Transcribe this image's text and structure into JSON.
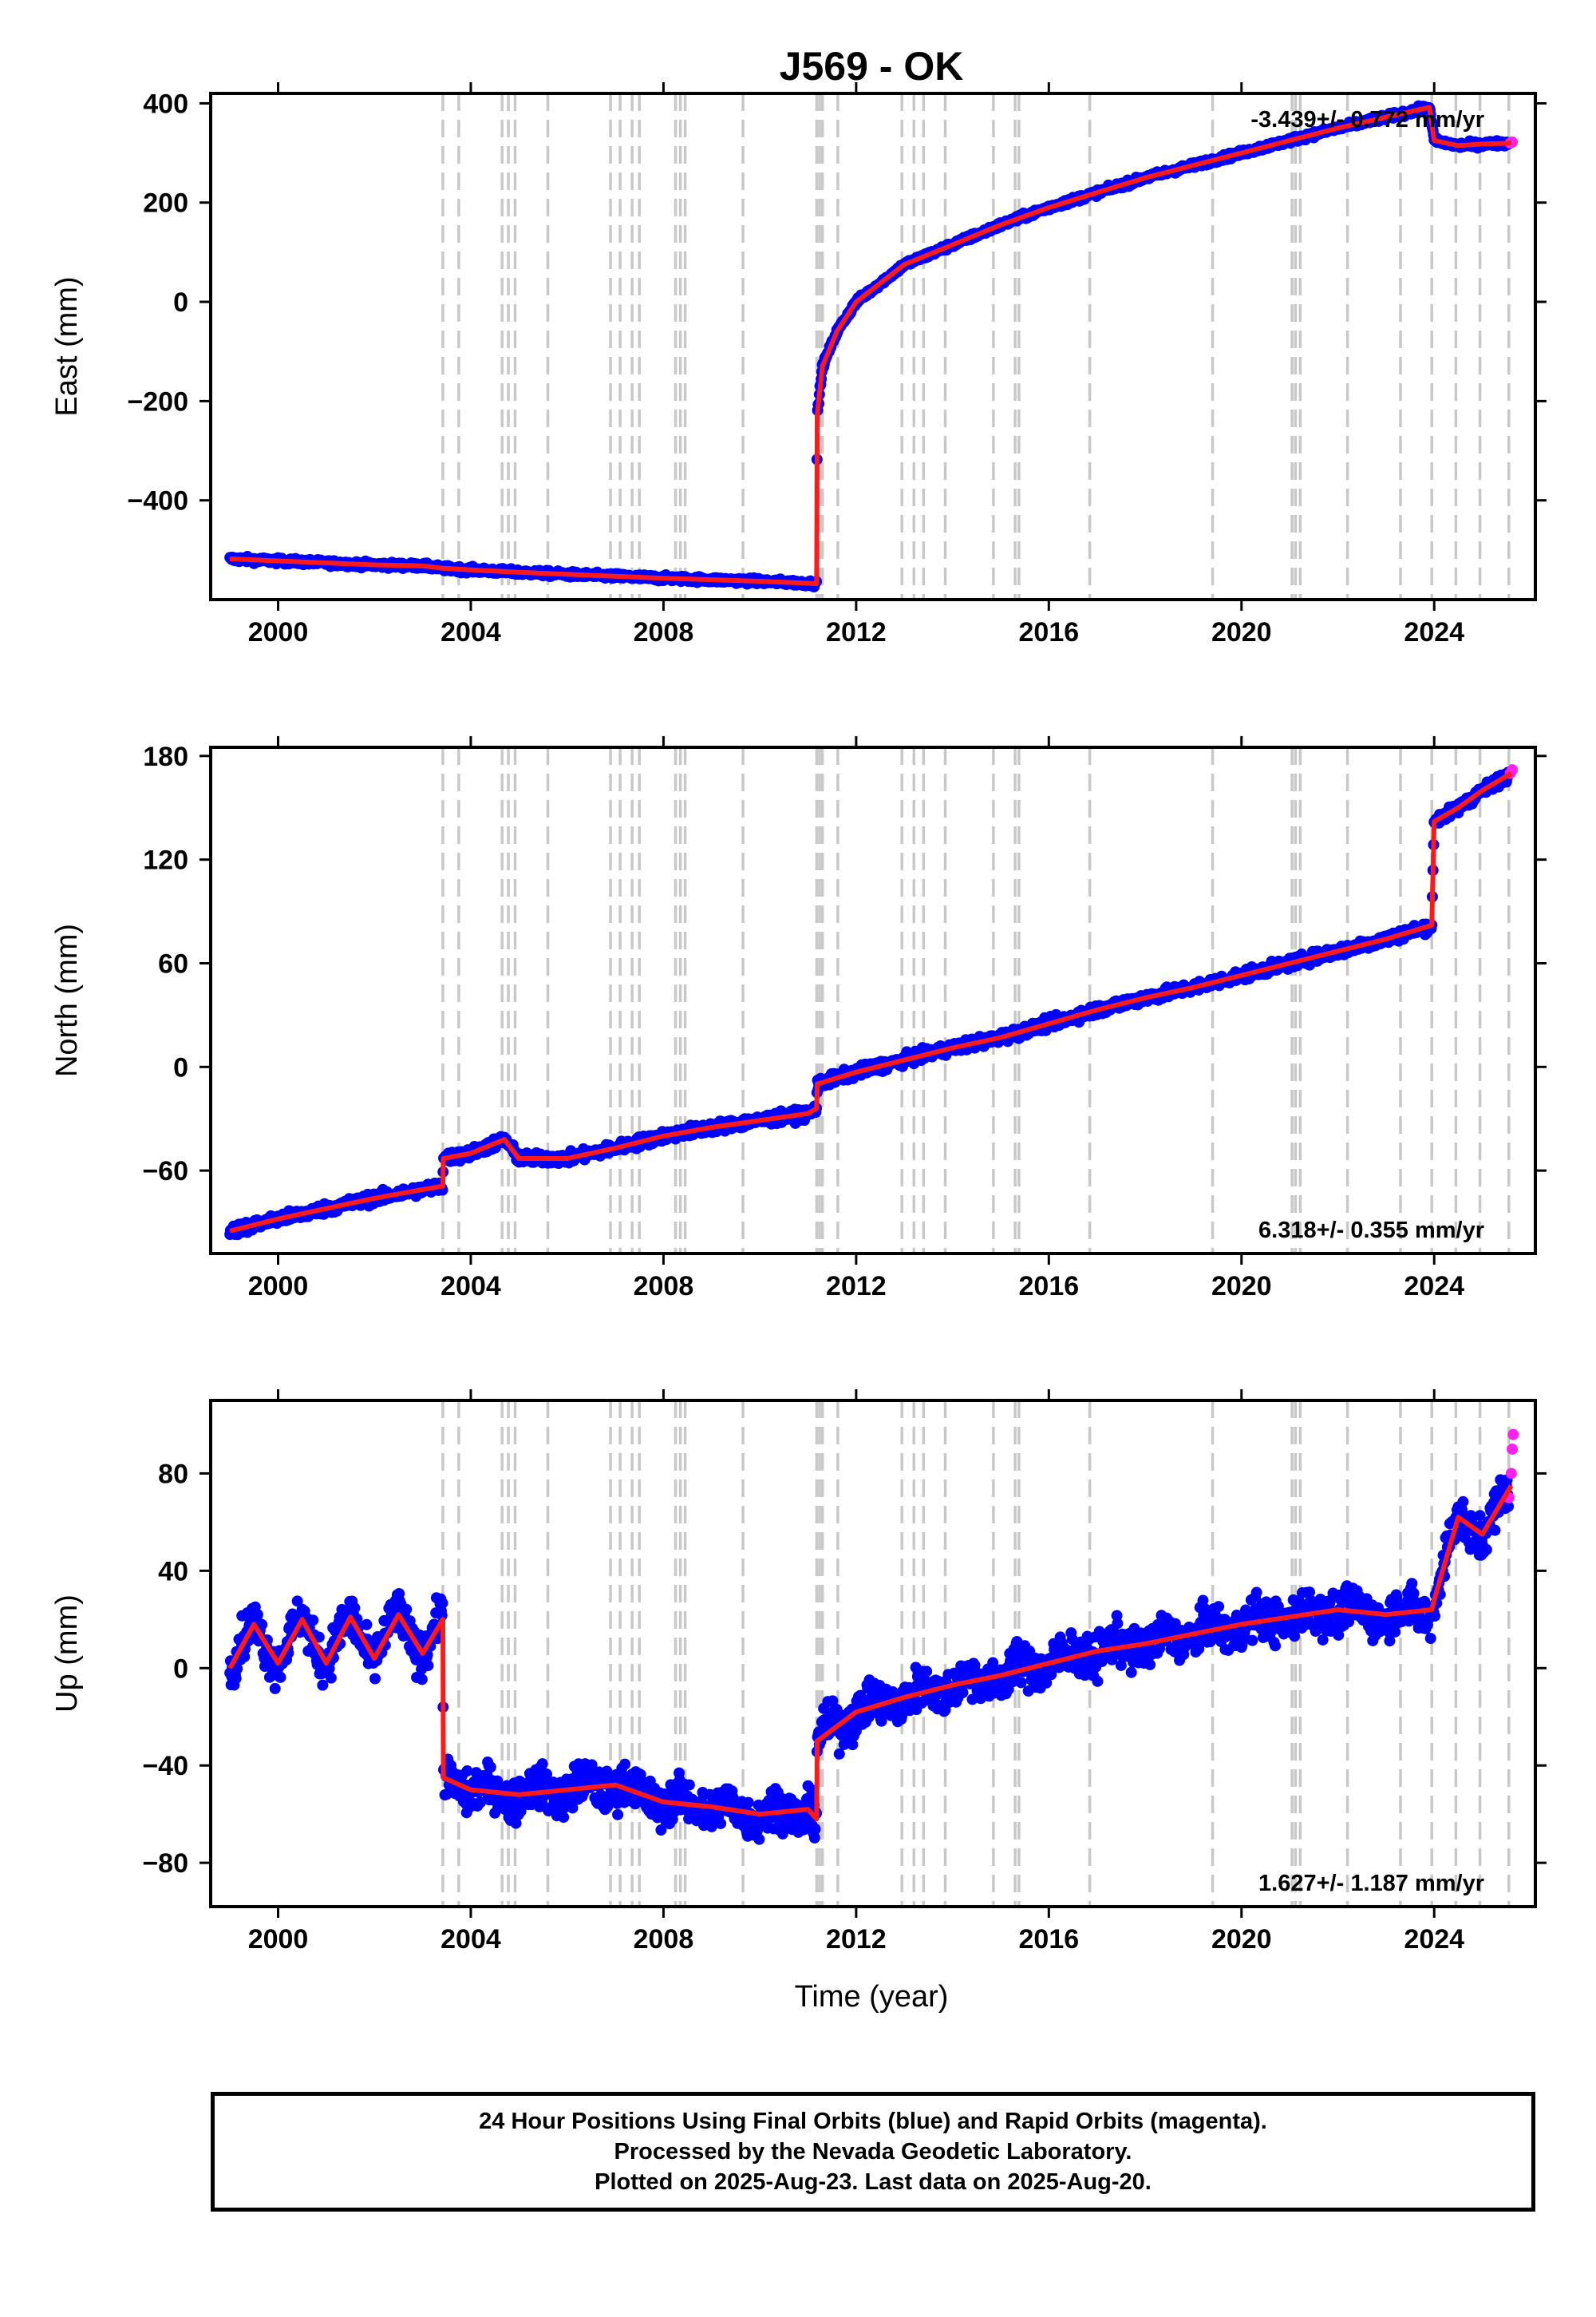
{
  "title": "J569 - OK",
  "xlabel": "Time (year)",
  "footer": {
    "line1": "24 Hour Positions Using Final Orbits (blue) and Rapid Orbits (magenta).",
    "line2": "Processed by the Nevada Geodetic Laboratory.",
    "line3": "Plotted on 2025-Aug-23. Last data on 2025-Aug-20."
  },
  "colors": {
    "final": "#0000ff",
    "rapid": "#ff22ee",
    "fit": "#ff1a1a",
    "events": "#c8c8c8"
  },
  "chart_data": [
    {
      "type": "scatter",
      "component": "east",
      "ylabel": "East (mm)",
      "rate": "-3.439+/- 0.772 mm/yr",
      "xlim": [
        1998.6,
        2026.1
      ],
      "ylim": [
        -600,
        420
      ],
      "xticks": [
        2000,
        2004,
        2008,
        2012,
        2016,
        2020,
        2024
      ],
      "yticks": [
        -400,
        -200,
        0,
        200,
        400
      ],
      "ytick_labels": [
        "−400",
        "−200",
        "0",
        "200",
        "400"
      ],
      "series": [
        {
          "x": [
            1999.0,
            2000.0,
            2001.0,
            2002.0,
            2003.0,
            2003.43,
            2004.0,
            2005.0,
            2006.0,
            2007.0,
            2008.0,
            2009.0,
            2010.0,
            2011.0,
            2011.18,
            2011.19,
            2011.3,
            2011.6,
            2012.0,
            2013.0,
            2014.0,
            2015.0,
            2016.0,
            2017.0,
            2018.0,
            2019.0,
            2020.0,
            2021.0,
            2022.0,
            2023.0,
            2023.9,
            2024.0,
            2024.5,
            2025.0,
            2025.6
          ],
          "y": [
            -518,
            -522,
            -526,
            -530,
            -532,
            -537,
            -540,
            -545,
            -549,
            -553,
            -557,
            -560,
            -563,
            -567,
            -568,
            -230,
            -130,
            -60,
            0,
            75,
            115,
            155,
            190,
            220,
            250,
            275,
            300,
            325,
            350,
            372,
            392,
            325,
            315,
            318,
            320
          ]
        }
      ]
    },
    {
      "type": "scatter",
      "component": "north",
      "ylabel": "North (mm)",
      "rate": "6.318+/- 0.355 mm/yr",
      "xlim": [
        1998.6,
        2026.1
      ],
      "ylim": [
        -108,
        185
      ],
      "xticks": [
        2000,
        2004,
        2008,
        2012,
        2016,
        2020,
        2024
      ],
      "yticks": [
        -60,
        0,
        60,
        120,
        180
      ],
      "ytick_labels": [
        "−60",
        "0",
        "60",
        "120",
        "180"
      ],
      "series": [
        {
          "x": [
            1999.0,
            2000.0,
            2001.0,
            2002.0,
            2003.0,
            2003.42,
            2003.43,
            2004.0,
            2004.7,
            2005.0,
            2006.0,
            2007.0,
            2008.0,
            2009.0,
            2010.0,
            2011.0,
            2011.18,
            2011.19,
            2012.0,
            2013.0,
            2014.0,
            2015.0,
            2016.0,
            2017.0,
            2018.0,
            2019.0,
            2020.0,
            2021.0,
            2022.0,
            2023.0,
            2023.95,
            2024.0,
            2024.5,
            2025.0,
            2025.6
          ],
          "y": [
            -95,
            -88,
            -82,
            -76,
            -71,
            -69,
            -53,
            -50,
            -42,
            -53,
            -53,
            -47,
            -40,
            -35,
            -31,
            -27,
            -24,
            -10,
            -3,
            4,
            11,
            17,
            25,
            33,
            40,
            46,
            53,
            60,
            67,
            74,
            82,
            142,
            150,
            160,
            170
          ]
        }
      ]
    },
    {
      "type": "scatter",
      "component": "up",
      "ylabel": "Up (mm)",
      "rate": "1.627+/- 1.187 mm/yr",
      "xlim": [
        1998.6,
        2026.1
      ],
      "ylim": [
        -98,
        110
      ],
      "xticks": [
        2000,
        2004,
        2008,
        2012,
        2016,
        2020,
        2024
      ],
      "yticks": [
        -80,
        -40,
        0,
        40,
        80
      ],
      "ytick_labels": [
        "−80",
        "−40",
        "0",
        "40",
        "80"
      ],
      "series": [
        {
          "x": [
            1999.0,
            1999.5,
            2000.0,
            2000.5,
            2001.0,
            2001.5,
            2002.0,
            2002.5,
            2003.0,
            2003.42,
            2003.43,
            2004.0,
            2005.0,
            2006.0,
            2007.0,
            2008.0,
            2009.0,
            2010.0,
            2011.0,
            2011.18,
            2011.19,
            2012.0,
            2013.0,
            2014.0,
            2015.0,
            2016.0,
            2017.0,
            2018.0,
            2019.0,
            2020.0,
            2021.0,
            2022.0,
            2023.0,
            2023.95,
            2024.0,
            2024.5,
            2025.0,
            2025.6
          ],
          "y": [
            0,
            18,
            2,
            20,
            2,
            21,
            4,
            22,
            6,
            20,
            -45,
            -50,
            -52,
            -50,
            -48,
            -55,
            -57,
            -60,
            -58,
            -62,
            -30,
            -18,
            -12,
            -7,
            -3,
            2,
            7,
            10,
            14,
            18,
            21,
            24,
            22,
            24,
            28,
            62,
            55,
            75
          ]
        },
        {
          "x": [
            2025.55,
            2025.6,
            2025.62,
            2025.64
          ],
          "y": [
            70,
            80,
            90,
            96
          ]
        }
      ]
    }
  ],
  "events": [
    2003.42,
    2003.75,
    2004.65,
    2004.78,
    2004.92,
    2005.6,
    2006.9,
    2007.1,
    2007.35,
    2007.5,
    2008.25,
    2008.35,
    2008.45,
    2009.65,
    2011.18,
    2011.24,
    2011.3,
    2011.62,
    2012.95,
    2013.2,
    2013.4,
    2013.85,
    2014.85,
    2015.3,
    2015.38,
    2016.85,
    2019.4,
    2021.05,
    2021.12,
    2021.22,
    2022.2,
    2023.3,
    2023.95,
    2024.45,
    2024.95,
    2025.55
  ]
}
